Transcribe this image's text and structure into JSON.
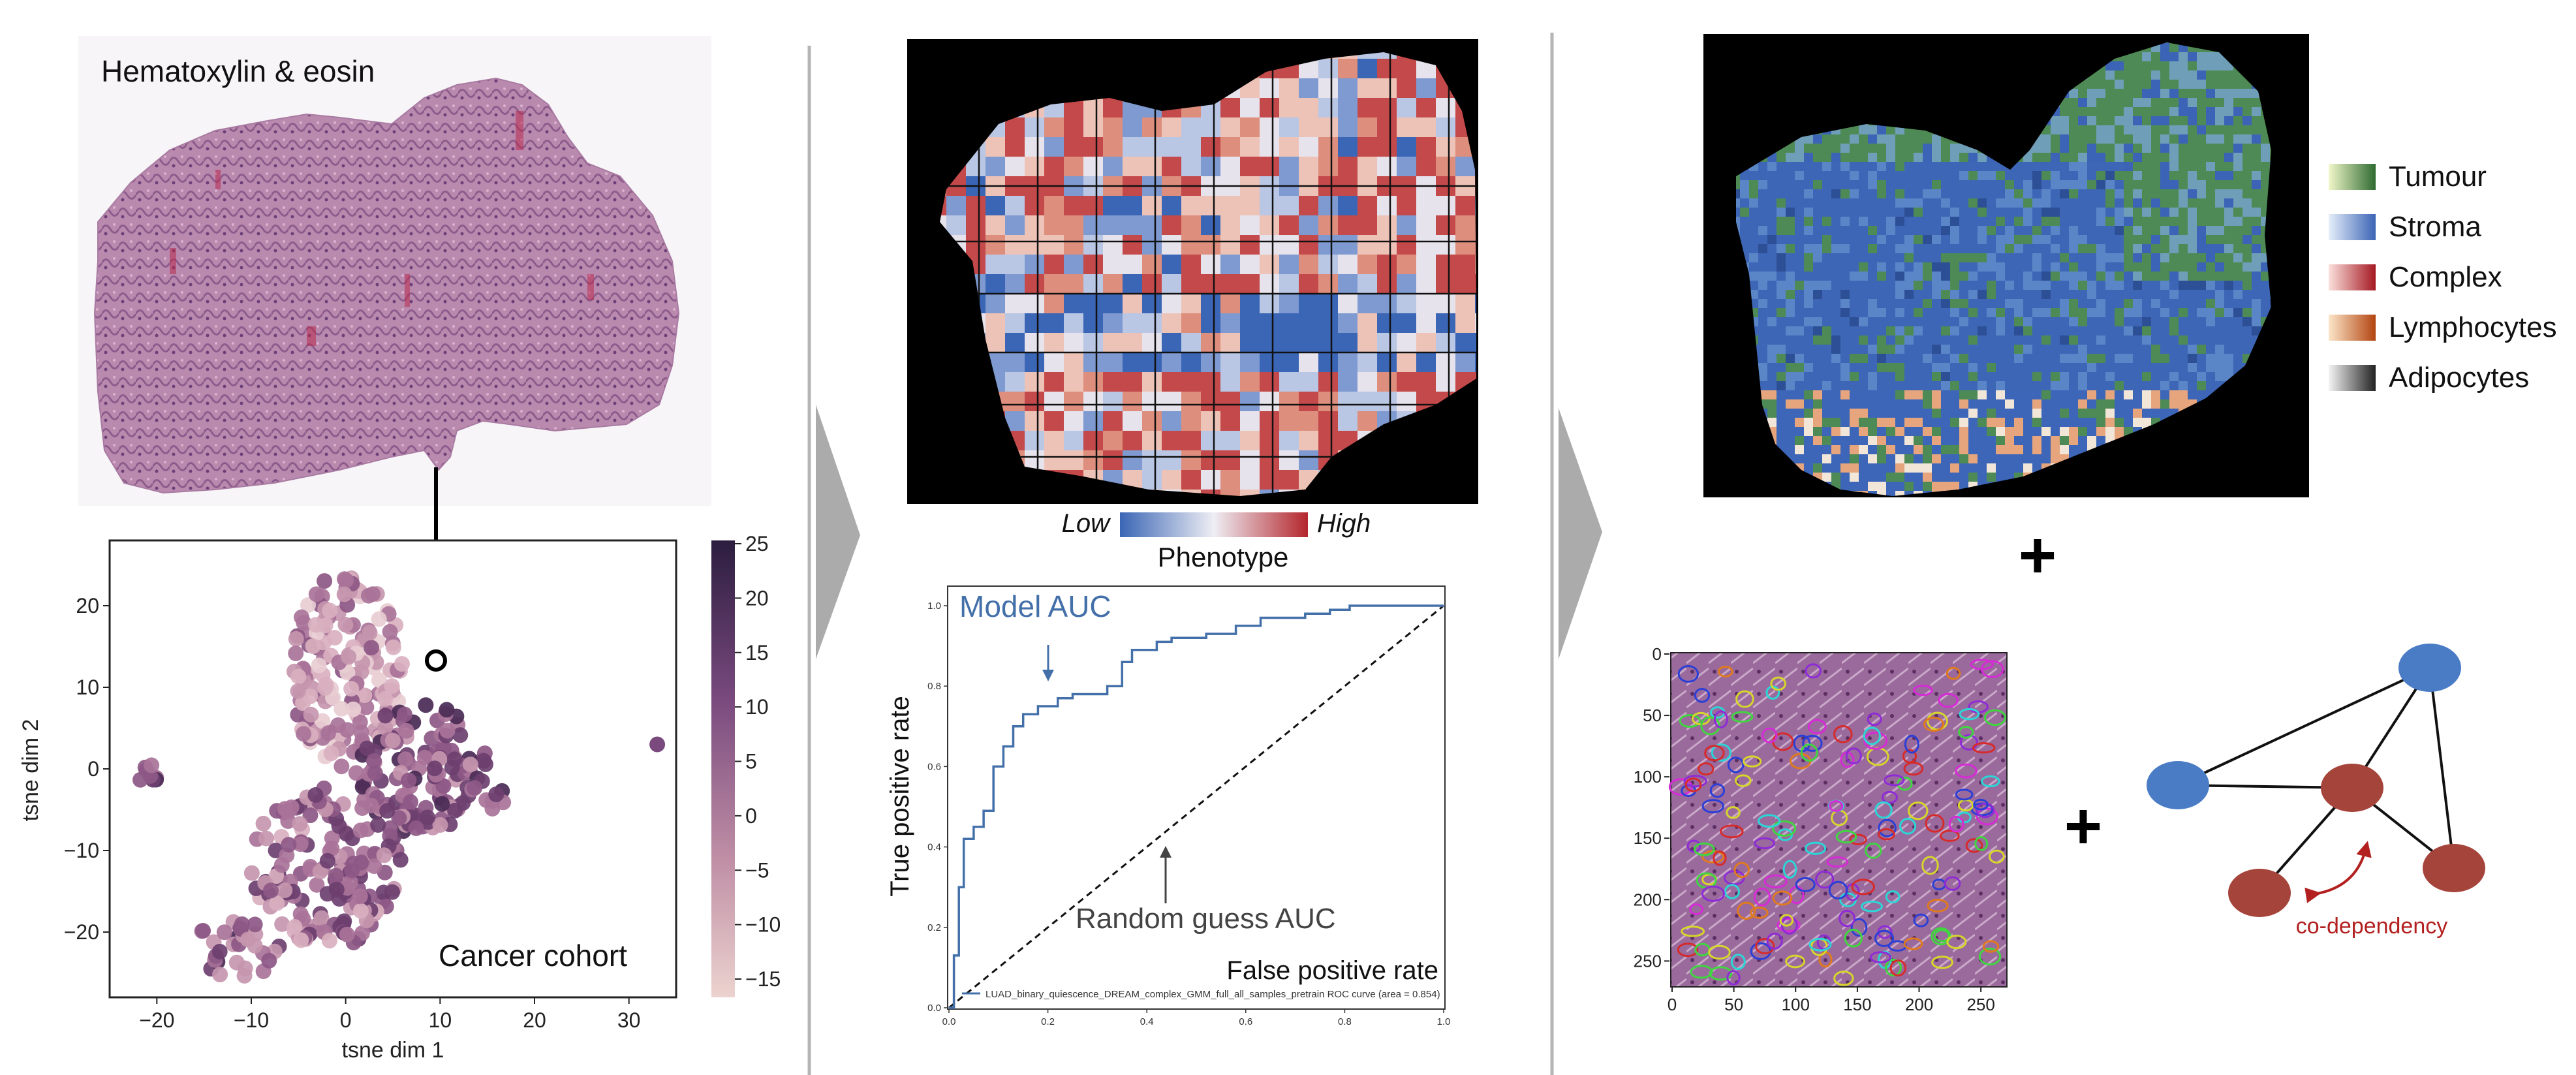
{
  "he_panel": {
    "title": "Hematoxylin & eosin"
  },
  "tsne": {
    "xlabel": "tsne dim 1",
    "ylabel": "tsne dim 2",
    "cohort_label": "Cancer cohort",
    "xticks": [
      "−20",
      "−10",
      "0",
      "10",
      "20",
      "30"
    ],
    "yticks": [
      "20",
      "10",
      "0",
      "−10",
      "−20"
    ],
    "colorbar_ticks": [
      "25",
      "20",
      "15",
      "10",
      "5",
      "0",
      "−5",
      "−10",
      "−15"
    ]
  },
  "phenotype_map": {
    "low_label": "Low",
    "high_label": "High",
    "title": "Phenotype"
  },
  "chart_data": {
    "type": "line",
    "xlabel": "False positive rate",
    "ylabel": "True positive rate",
    "xlim": [
      0,
      1
    ],
    "ylim": [
      0,
      1
    ],
    "xticks": [
      "0.0",
      "0.2",
      "0.4",
      "0.6",
      "0.8",
      "1.0"
    ],
    "yticks": [
      "0.0",
      "0.2",
      "0.4",
      "0.6",
      "0.8",
      "1.0"
    ],
    "legend_text": "LUAD_binary_quiescence_DREAM_complex_GMM_full_all_samples_pretrain ROC curve (area = 0.854)",
    "annotations": [
      "Model AUC",
      "Random guess AUC"
    ],
    "series": [
      {
        "values_x": [
          0,
          0.01,
          0.01,
          0.02,
          0.02,
          0.03,
          0.03,
          0.05,
          0.05,
          0.07,
          0.07,
          0.09,
          0.09,
          0.11,
          0.11,
          0.13,
          0.13,
          0.15,
          0.15,
          0.18,
          0.18,
          0.22,
          0.22,
          0.25,
          0.25,
          0.32,
          0.32,
          0.35,
          0.35,
          0.37,
          0.37,
          0.42,
          0.42,
          0.45,
          0.45,
          0.52,
          0.52,
          0.58,
          0.58,
          0.63,
          0.63,
          0.72,
          0.72,
          0.77,
          0.77,
          0.81,
          0.81,
          1.0
        ],
        "values_y": [
          0,
          0,
          0.13,
          0.13,
          0.3,
          0.3,
          0.42,
          0.42,
          0.45,
          0.45,
          0.49,
          0.49,
          0.6,
          0.6,
          0.65,
          0.65,
          0.7,
          0.7,
          0.73,
          0.73,
          0.75,
          0.75,
          0.77,
          0.77,
          0.78,
          0.78,
          0.8,
          0.8,
          0.86,
          0.86,
          0.89,
          0.89,
          0.91,
          0.91,
          0.92,
          0.92,
          0.93,
          0.93,
          0.95,
          0.95,
          0.97,
          0.97,
          0.98,
          0.98,
          0.99,
          0.99,
          1.0,
          1.0
        ]
      },
      {
        "values_x": [
          0,
          1
        ],
        "values_y": [
          0,
          1
        ]
      }
    ]
  },
  "tissue_legend": {
    "items": [
      {
        "label": "Tumour",
        "from": "#f1f7c9",
        "to": "#2f6b31"
      },
      {
        "label": "Stroma",
        "from": "#e5eef9",
        "to": "#3b64b6"
      },
      {
        "label": "Complex",
        "from": "#fbe0dc",
        "to": "#a51822"
      },
      {
        "label": "Lymphocytes",
        "from": "#fce6c8",
        "to": "#b34410"
      },
      {
        "label": "Adipocytes",
        "from": "#f4f4f4",
        "to": "#222222"
      }
    ]
  },
  "nuclei_panel": {
    "xticks": [
      "0",
      "50",
      "100",
      "150",
      "200",
      "250"
    ],
    "yticks": [
      "0",
      "50",
      "100",
      "150",
      "200",
      "250"
    ]
  },
  "graph_panel": {
    "label": "co-dependency"
  },
  "colors": {
    "blue_node": "#4a7cc6",
    "red_node": "#a5443a",
    "codep_text": "#b32020",
    "roc_line": "#4470aa"
  }
}
